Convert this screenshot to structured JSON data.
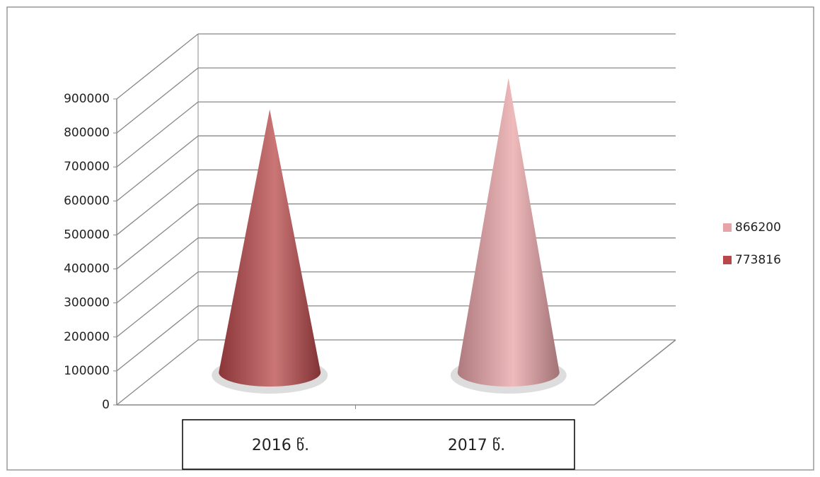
{
  "chart_data": {
    "type": "cone3d",
    "categories": [
      "2016 წ.",
      "2017 წ."
    ],
    "series": [
      {
        "name": "866200",
        "color": "#e8a3a6",
        "values": [
          null,
          866200
        ]
      },
      {
        "name": "773816",
        "color": "#b8484a",
        "values": [
          773816,
          null
        ]
      }
    ],
    "ylim": [
      0,
      900000
    ],
    "yticks": [
      0,
      100000,
      200000,
      300000,
      400000,
      500000,
      600000,
      700000,
      800000,
      900000
    ],
    "grid": true,
    "legend": "right"
  }
}
